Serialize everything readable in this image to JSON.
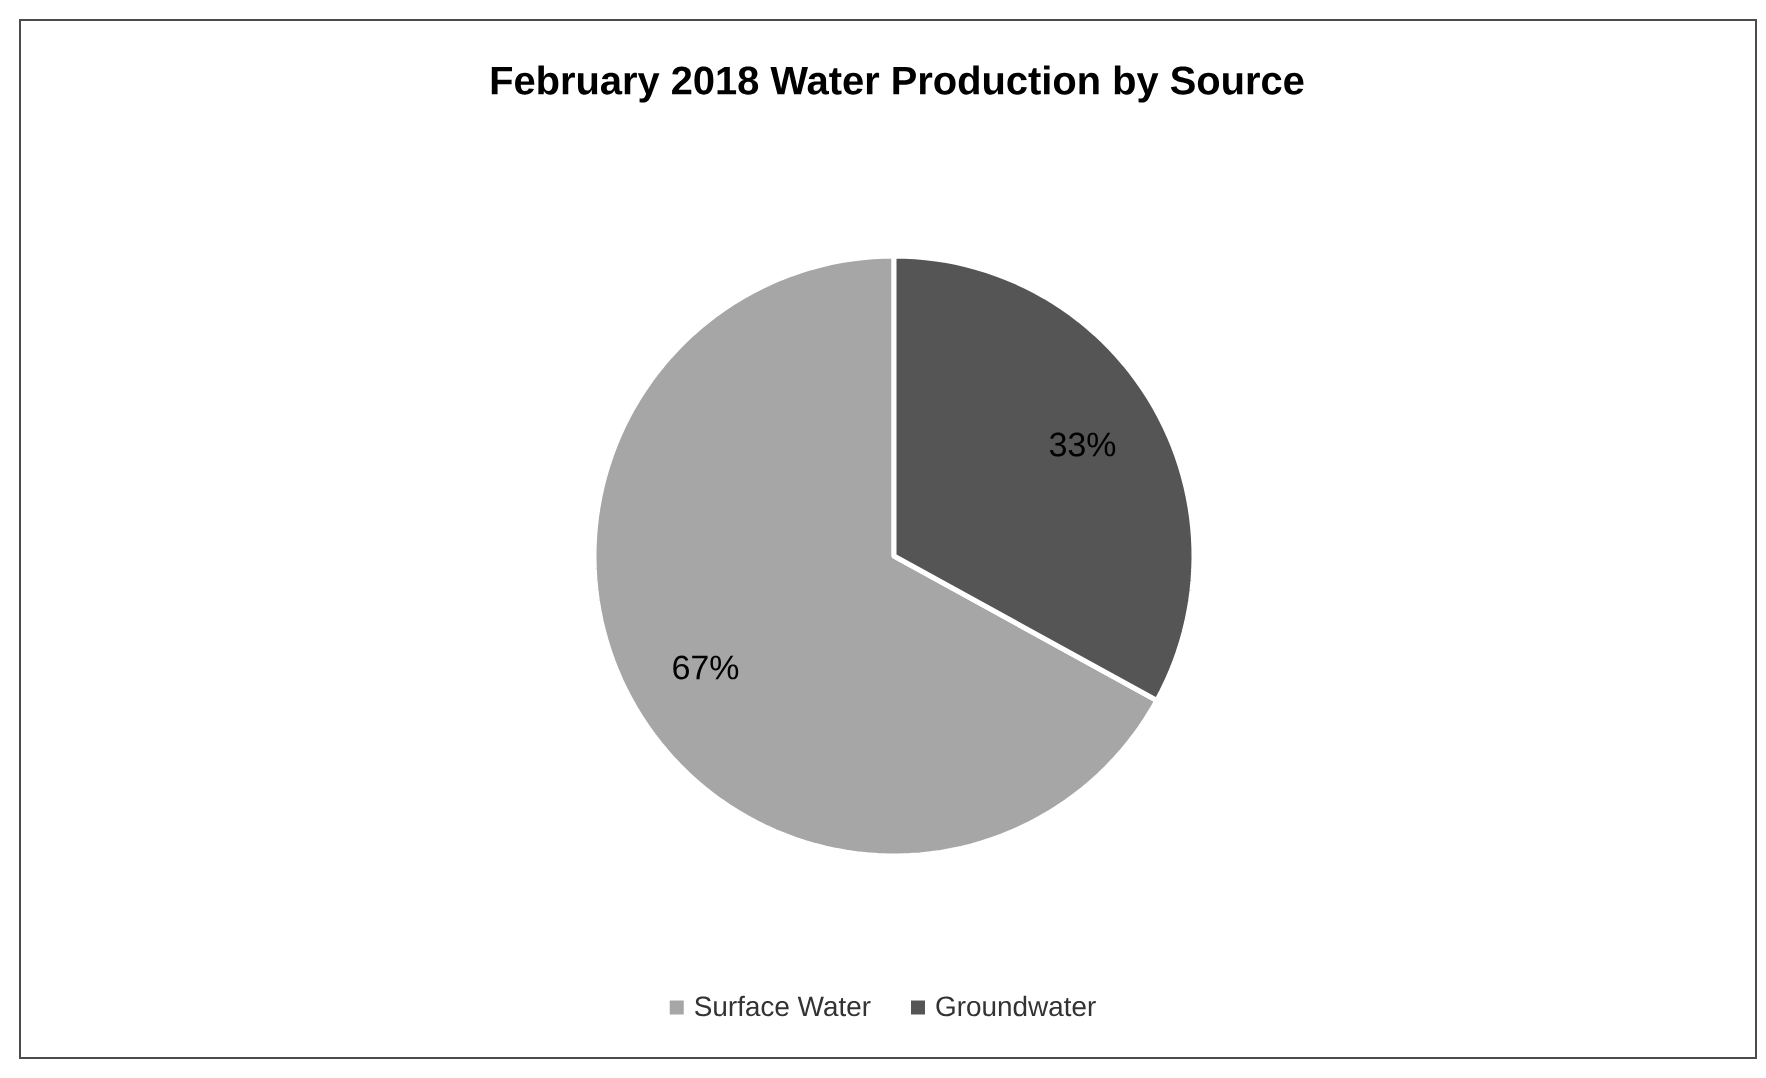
{
  "chart_data": {
    "type": "pie",
    "title": "February 2018 Water Production by Source",
    "categories": [
      "Surface Water",
      "Groundwater"
    ],
    "values": [
      67,
      33
    ],
    "colors": [
      "#a6a6a6",
      "#555555"
    ],
    "value_labels": [
      "67%",
      "33%"
    ],
    "legend": "bottom"
  }
}
